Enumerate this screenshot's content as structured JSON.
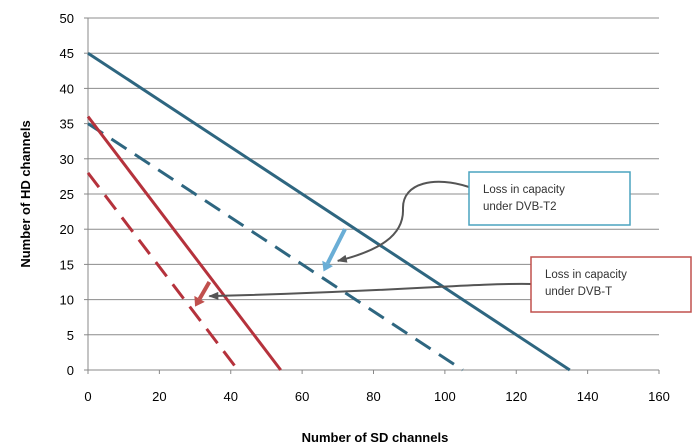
{
  "chart_data": {
    "type": "line",
    "title": "",
    "xlabel": "Number of SD channels",
    "ylabel": "Number of HD channels",
    "xlim": [
      0,
      160
    ],
    "ylim": [
      0,
      50
    ],
    "xticks": [
      0,
      20,
      40,
      60,
      80,
      100,
      120,
      140,
      160
    ],
    "yticks": [
      0,
      5,
      10,
      15,
      20,
      25,
      30,
      35,
      40,
      45,
      50
    ],
    "grid": "horizontal",
    "legend": "none",
    "series": [
      {
        "color": "#2e6680",
        "style": "solid",
        "x": [
          0,
          135
        ],
        "y": [
          45,
          0
        ]
      },
      {
        "color": "#2e6680",
        "style": "dashed",
        "x": [
          0,
          105
        ],
        "y": [
          35,
          0
        ]
      },
      {
        "color": "#b5323c",
        "style": "solid",
        "x": [
          0,
          54
        ],
        "y": [
          36,
          0
        ]
      },
      {
        "color": "#b5323c",
        "style": "dashed",
        "x": [
          0,
          42
        ],
        "y": [
          28,
          0
        ]
      }
    ],
    "annotations": [
      {
        "lines": [
          "Loss in capacity",
          "under DVB-T2"
        ],
        "border_color": "#4aa3bf",
        "arrow_target": [
          70,
          15.5
        ],
        "shift_arrow": {
          "from": [
            72,
            20
          ],
          "to": [
            66,
            14
          ],
          "color": "#6aaed6"
        }
      },
      {
        "lines": [
          "Loss in capacity",
          "under DVB-T"
        ],
        "border_color": "#c0504d",
        "arrow_target": [
          34,
          10.5
        ],
        "shift_arrow": {
          "from": [
            34,
            12.5
          ],
          "to": [
            30,
            9
          ],
          "color": "#c0504d"
        }
      }
    ]
  }
}
